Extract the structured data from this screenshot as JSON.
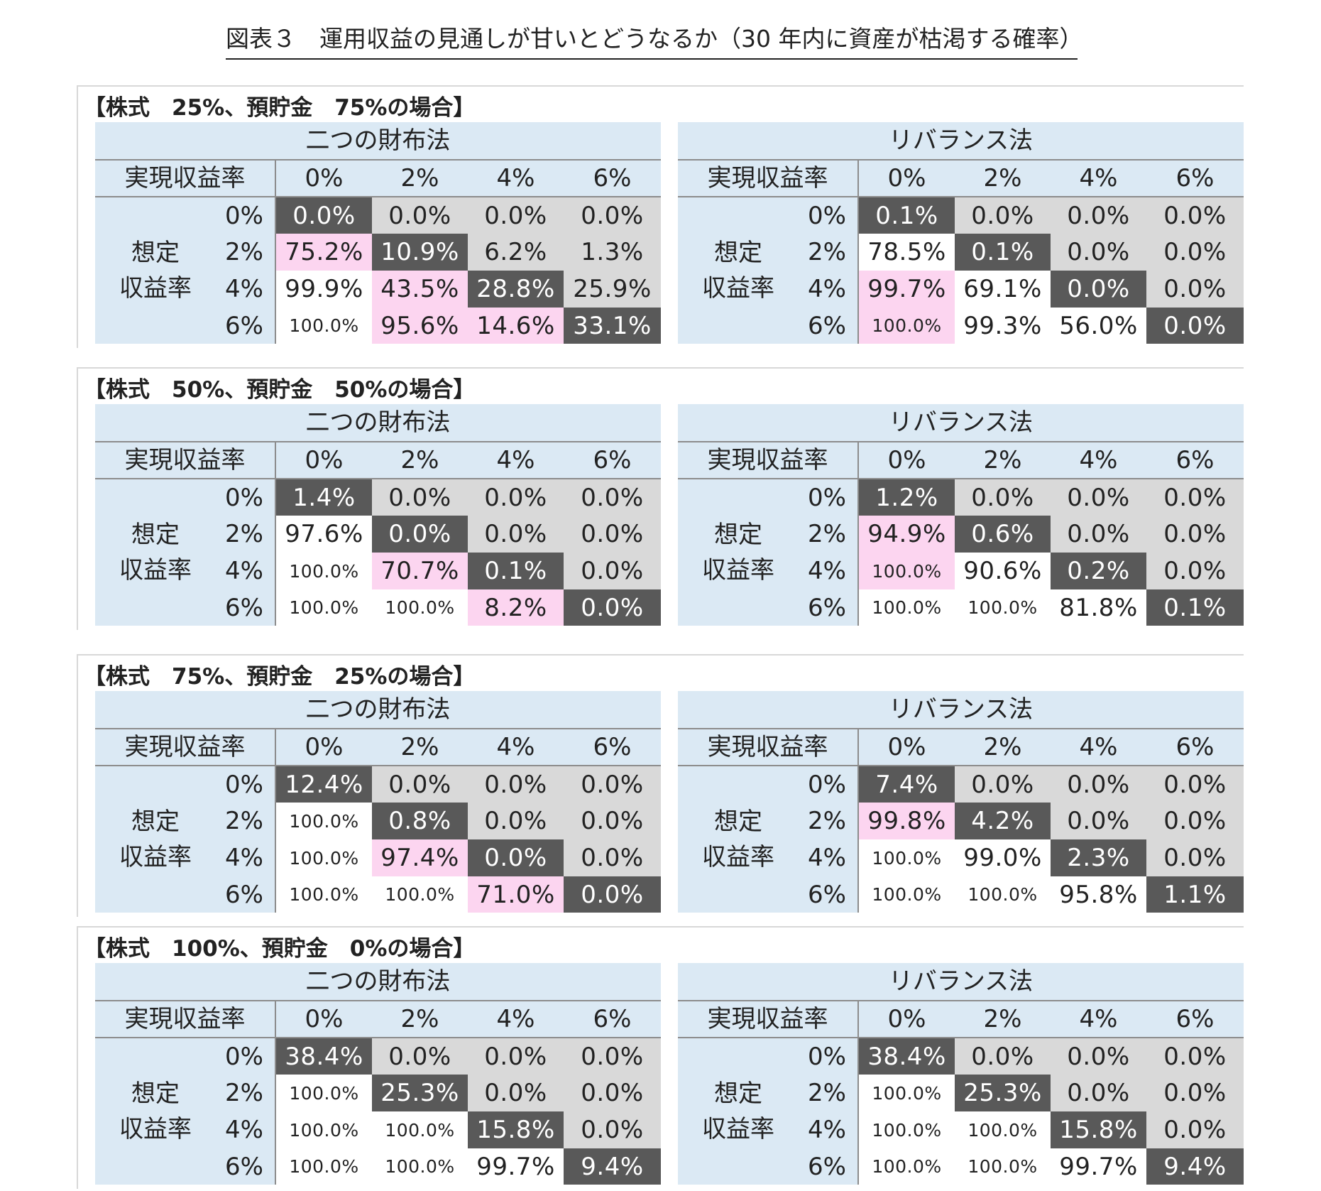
{
  "title": "図表３　運用収益の見通しが甘いとどうなるか（30 年内に資産が枯渇する確率）",
  "labels": {
    "realized": "実現収益率",
    "assumed_line1": "想定",
    "assumed_line2": "収益率",
    "rates": [
      "0%",
      "2%",
      "4%",
      "6%"
    ]
  },
  "colors": {
    "header": "#dbe9f4",
    "dark": "#595959",
    "gray": "#d9d9d9",
    "pink": "#fcd5f0",
    "white": "#ffffff"
  },
  "sections": [
    {
      "title": "【株式　25%、預貯金　75%の場合】",
      "panels": [
        {
          "method": "二つの財布法",
          "rows": [
            [
              {
                "v": "0.0%",
                "c": "dark"
              },
              {
                "v": "0.0%",
                "c": "gray"
              },
              {
                "v": "0.0%",
                "c": "gray"
              },
              {
                "v": "0.0%",
                "c": "gray"
              }
            ],
            [
              {
                "v": "75.2%",
                "c": "pink"
              },
              {
                "v": "10.9%",
                "c": "dark"
              },
              {
                "v": "6.2%",
                "c": "gray"
              },
              {
                "v": "1.3%",
                "c": "gray"
              }
            ],
            [
              {
                "v": "99.9%",
                "c": "white"
              },
              {
                "v": "43.5%",
                "c": "pink"
              },
              {
                "v": "28.8%",
                "c": "dark"
              },
              {
                "v": "25.9%",
                "c": "gray"
              }
            ],
            [
              {
                "v": "100.0%",
                "c": "white"
              },
              {
                "v": "95.6%",
                "c": "pink"
              },
              {
                "v": "14.6%",
                "c": "pink"
              },
              {
                "v": "33.1%",
                "c": "dark"
              }
            ]
          ]
        },
        {
          "method": "リバランス法",
          "rows": [
            [
              {
                "v": "0.1%",
                "c": "dark"
              },
              {
                "v": "0.0%",
                "c": "gray"
              },
              {
                "v": "0.0%",
                "c": "gray"
              },
              {
                "v": "0.0%",
                "c": "gray"
              }
            ],
            [
              {
                "v": "78.5%",
                "c": "white"
              },
              {
                "v": "0.1%",
                "c": "dark"
              },
              {
                "v": "0.0%",
                "c": "gray"
              },
              {
                "v": "0.0%",
                "c": "gray"
              }
            ],
            [
              {
                "v": "99.7%",
                "c": "pink"
              },
              {
                "v": "69.1%",
                "c": "white"
              },
              {
                "v": "0.0%",
                "c": "dark"
              },
              {
                "v": "0.0%",
                "c": "gray"
              }
            ],
            [
              {
                "v": "100.0%",
                "c": "pink"
              },
              {
                "v": "99.3%",
                "c": "white"
              },
              {
                "v": "56.0%",
                "c": "white"
              },
              {
                "v": "0.0%",
                "c": "dark"
              }
            ]
          ]
        }
      ]
    },
    {
      "title": "【株式　50%、預貯金　50%の場合】",
      "panels": [
        {
          "method": "二つの財布法",
          "rows": [
            [
              {
                "v": "1.4%",
                "c": "dark"
              },
              {
                "v": "0.0%",
                "c": "gray"
              },
              {
                "v": "0.0%",
                "c": "gray"
              },
              {
                "v": "0.0%",
                "c": "gray"
              }
            ],
            [
              {
                "v": "97.6%",
                "c": "white"
              },
              {
                "v": "0.0%",
                "c": "dark"
              },
              {
                "v": "0.0%",
                "c": "gray"
              },
              {
                "v": "0.0%",
                "c": "gray"
              }
            ],
            [
              {
                "v": "100.0%",
                "c": "white"
              },
              {
                "v": "70.7%",
                "c": "pink"
              },
              {
                "v": "0.1%",
                "c": "dark"
              },
              {
                "v": "0.0%",
                "c": "gray"
              }
            ],
            [
              {
                "v": "100.0%",
                "c": "white"
              },
              {
                "v": "100.0%",
                "c": "white"
              },
              {
                "v": "8.2%",
                "c": "pink"
              },
              {
                "v": "0.0%",
                "c": "dark"
              }
            ]
          ]
        },
        {
          "method": "リバランス法",
          "rows": [
            [
              {
                "v": "1.2%",
                "c": "dark"
              },
              {
                "v": "0.0%",
                "c": "gray"
              },
              {
                "v": "0.0%",
                "c": "gray"
              },
              {
                "v": "0.0%",
                "c": "gray"
              }
            ],
            [
              {
                "v": "94.9%",
                "c": "pink"
              },
              {
                "v": "0.6%",
                "c": "dark"
              },
              {
                "v": "0.0%",
                "c": "gray"
              },
              {
                "v": "0.0%",
                "c": "gray"
              }
            ],
            [
              {
                "v": "100.0%",
                "c": "pink"
              },
              {
                "v": "90.6%",
                "c": "white"
              },
              {
                "v": "0.2%",
                "c": "dark"
              },
              {
                "v": "0.0%",
                "c": "gray"
              }
            ],
            [
              {
                "v": "100.0%",
                "c": "white"
              },
              {
                "v": "100.0%",
                "c": "white"
              },
              {
                "v": "81.8%",
                "c": "white"
              },
              {
                "v": "0.1%",
                "c": "dark"
              }
            ]
          ]
        }
      ]
    },
    {
      "title": "【株式　75%、預貯金　25%の場合】",
      "panels": [
        {
          "method": "二つの財布法",
          "rows": [
            [
              {
                "v": "12.4%",
                "c": "dark"
              },
              {
                "v": "0.0%",
                "c": "gray"
              },
              {
                "v": "0.0%",
                "c": "gray"
              },
              {
                "v": "0.0%",
                "c": "gray"
              }
            ],
            [
              {
                "v": "100.0%",
                "c": "white"
              },
              {
                "v": "0.8%",
                "c": "dark"
              },
              {
                "v": "0.0%",
                "c": "gray"
              },
              {
                "v": "0.0%",
                "c": "gray"
              }
            ],
            [
              {
                "v": "100.0%",
                "c": "white"
              },
              {
                "v": "97.4%",
                "c": "pink"
              },
              {
                "v": "0.0%",
                "c": "dark"
              },
              {
                "v": "0.0%",
                "c": "gray"
              }
            ],
            [
              {
                "v": "100.0%",
                "c": "white"
              },
              {
                "v": "100.0%",
                "c": "white"
              },
              {
                "v": "71.0%",
                "c": "pink"
              },
              {
                "v": "0.0%",
                "c": "dark"
              }
            ]
          ]
        },
        {
          "method": "リバランス法",
          "rows": [
            [
              {
                "v": "7.4%",
                "c": "dark"
              },
              {
                "v": "0.0%",
                "c": "gray"
              },
              {
                "v": "0.0%",
                "c": "gray"
              },
              {
                "v": "0.0%",
                "c": "gray"
              }
            ],
            [
              {
                "v": "99.8%",
                "c": "pink"
              },
              {
                "v": "4.2%",
                "c": "dark"
              },
              {
                "v": "0.0%",
                "c": "gray"
              },
              {
                "v": "0.0%",
                "c": "gray"
              }
            ],
            [
              {
                "v": "100.0%",
                "c": "white"
              },
              {
                "v": "99.0%",
                "c": "white"
              },
              {
                "v": "2.3%",
                "c": "dark"
              },
              {
                "v": "0.0%",
                "c": "gray"
              }
            ],
            [
              {
                "v": "100.0%",
                "c": "white"
              },
              {
                "v": "100.0%",
                "c": "white"
              },
              {
                "v": "95.8%",
                "c": "white"
              },
              {
                "v": "1.1%",
                "c": "dark"
              }
            ]
          ]
        }
      ]
    },
    {
      "title": "【株式　100%、預貯金　0%の場合】",
      "panels": [
        {
          "method": "二つの財布法",
          "rows": [
            [
              {
                "v": "38.4%",
                "c": "dark"
              },
              {
                "v": "0.0%",
                "c": "gray"
              },
              {
                "v": "0.0%",
                "c": "gray"
              },
              {
                "v": "0.0%",
                "c": "gray"
              }
            ],
            [
              {
                "v": "100.0%",
                "c": "white"
              },
              {
                "v": "25.3%",
                "c": "dark"
              },
              {
                "v": "0.0%",
                "c": "gray"
              },
              {
                "v": "0.0%",
                "c": "gray"
              }
            ],
            [
              {
                "v": "100.0%",
                "c": "white"
              },
              {
                "v": "100.0%",
                "c": "white"
              },
              {
                "v": "15.8%",
                "c": "dark"
              },
              {
                "v": "0.0%",
                "c": "gray"
              }
            ],
            [
              {
                "v": "100.0%",
                "c": "white"
              },
              {
                "v": "100.0%",
                "c": "white"
              },
              {
                "v": "99.7%",
                "c": "white"
              },
              {
                "v": "9.4%",
                "c": "dark"
              }
            ]
          ]
        },
        {
          "method": "リバランス法",
          "rows": [
            [
              {
                "v": "38.4%",
                "c": "dark"
              },
              {
                "v": "0.0%",
                "c": "gray"
              },
              {
                "v": "0.0%",
                "c": "gray"
              },
              {
                "v": "0.0%",
                "c": "gray"
              }
            ],
            [
              {
                "v": "100.0%",
                "c": "white"
              },
              {
                "v": "25.3%",
                "c": "dark"
              },
              {
                "v": "0.0%",
                "c": "gray"
              },
              {
                "v": "0.0%",
                "c": "gray"
              }
            ],
            [
              {
                "v": "100.0%",
                "c": "white"
              },
              {
                "v": "100.0%",
                "c": "white"
              },
              {
                "v": "15.8%",
                "c": "dark"
              },
              {
                "v": "0.0%",
                "c": "gray"
              }
            ],
            [
              {
                "v": "100.0%",
                "c": "white"
              },
              {
                "v": "100.0%",
                "c": "white"
              },
              {
                "v": "99.7%",
                "c": "white"
              },
              {
                "v": "9.4%",
                "c": "dark"
              }
            ]
          ]
        }
      ]
    }
  ]
}
